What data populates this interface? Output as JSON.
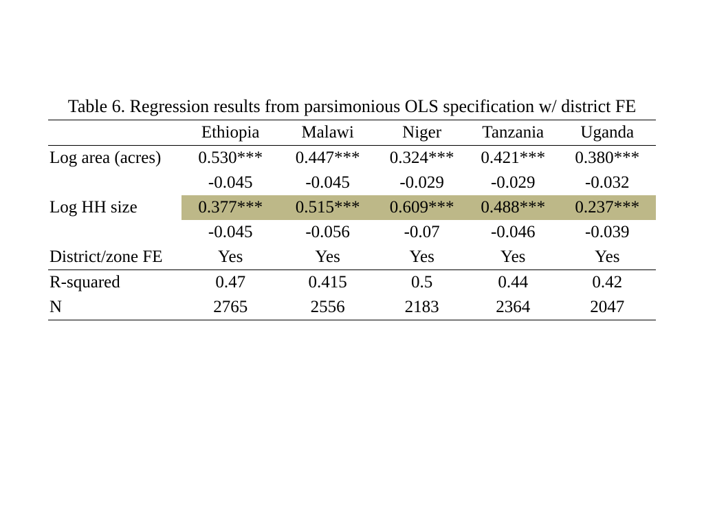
{
  "table": {
    "type": "table",
    "title": "Table 6. Regression results from parsimonious OLS specification w/ district FE",
    "title_fontsize": 26,
    "cell_fontsize": 25,
    "background_color": "#ffffff",
    "text_color": "#000000",
    "border_color": "#000000",
    "highlight_color": "#bdb888",
    "columns": [
      "",
      "Ethiopia",
      "Malawi",
      "Niger",
      "Tanzania",
      "Uganda"
    ],
    "rows": [
      {
        "label": "Log area (acres)",
        "values": [
          "0.530***",
          "0.447***",
          "0.324***",
          "0.421***",
          "0.380***"
        ],
        "highlight": false
      },
      {
        "label": "",
        "values": [
          "-0.045",
          "-0.045",
          "-0.029",
          "-0.029",
          "-0.032"
        ],
        "highlight": false
      },
      {
        "label": "Log HH size",
        "values": [
          "0.377***",
          "0.515***",
          "0.609***",
          "0.488***",
          "0.237***"
        ],
        "highlight": true
      },
      {
        "label": "",
        "values": [
          "-0.045",
          "-0.056",
          "-0.07",
          "-0.046",
          "-0.039"
        ],
        "highlight": false
      },
      {
        "label": "District/zone FE",
        "values": [
          "Yes",
          "Yes",
          "Yes",
          "Yes",
          "Yes"
        ],
        "highlight": false
      },
      {
        "label": "R-squared",
        "values": [
          "0.47",
          "0.415",
          "0.5",
          "0.44",
          "0.42"
        ],
        "highlight": false
      },
      {
        "label": "N",
        "values": [
          "2765",
          "2556",
          "2183",
          "2364",
          "2047"
        ],
        "highlight": false
      }
    ],
    "row_separators_above": [
      5
    ],
    "row_separators_below": [
      6
    ],
    "column_widths_pct": [
      22,
      16,
      16,
      15,
      15,
      16
    ],
    "column_align": [
      "left",
      "center",
      "center",
      "center",
      "center",
      "center"
    ]
  }
}
